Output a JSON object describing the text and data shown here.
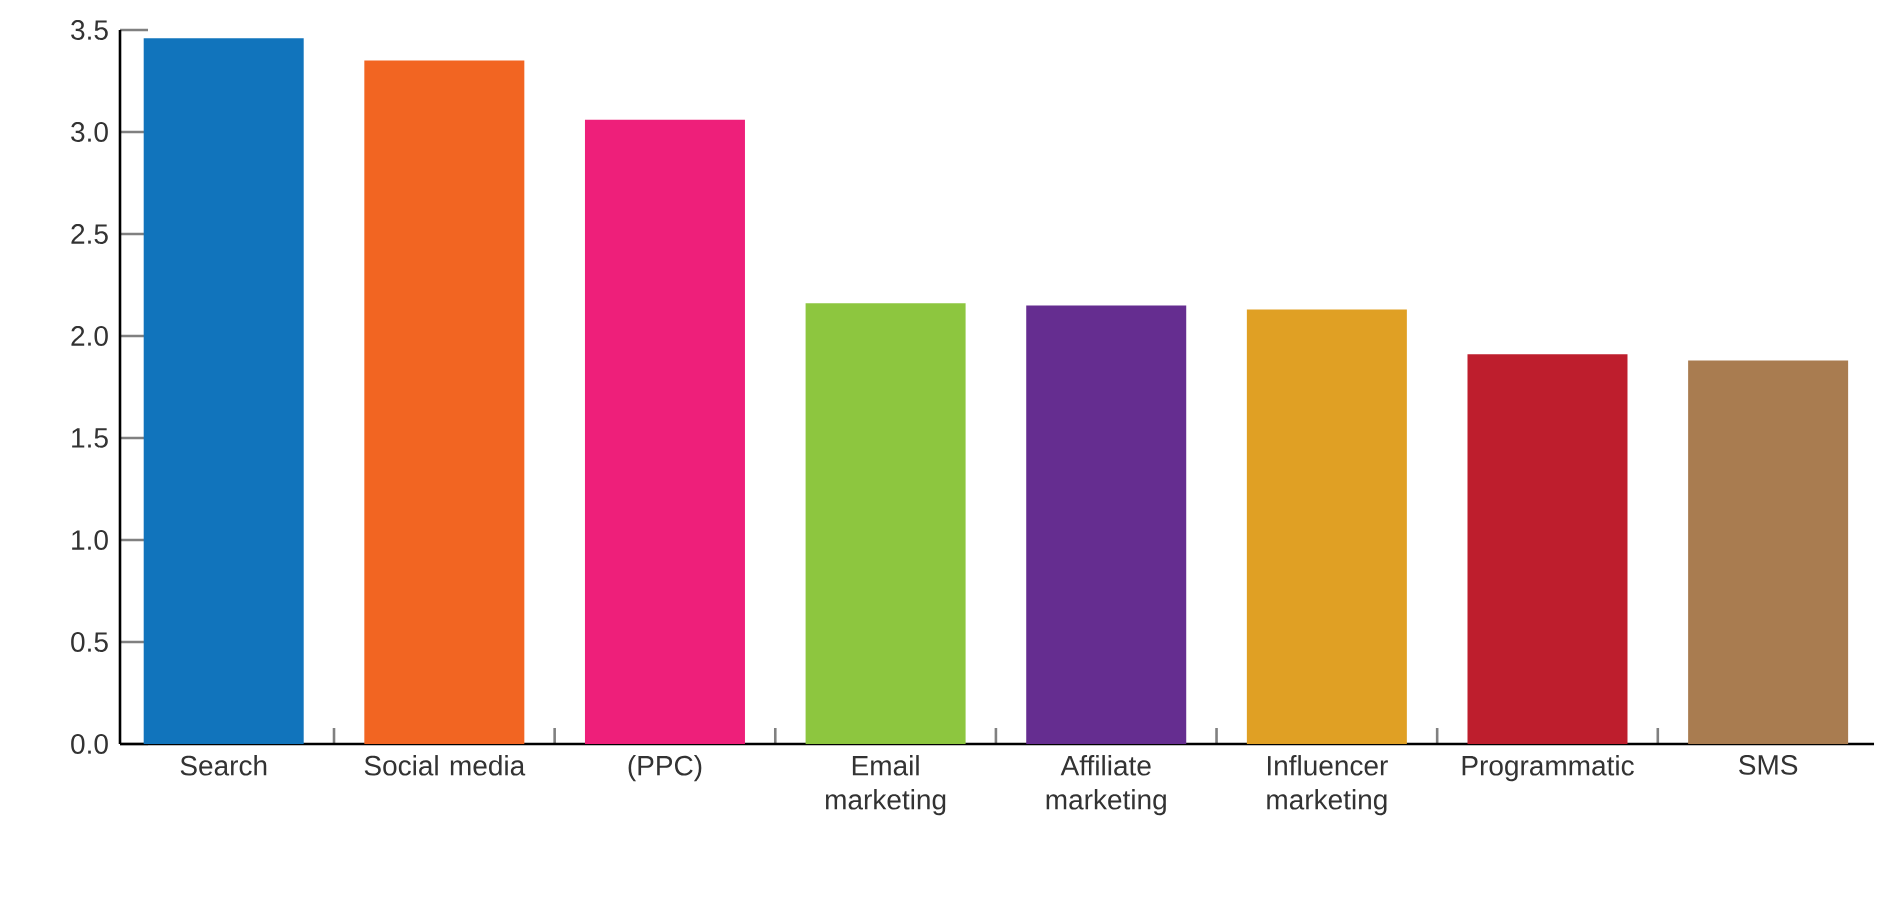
{
  "chart_data": {
    "type": "bar",
    "categories": [
      "Search",
      "Social media",
      "(PPC)",
      "Email marketing",
      "Affiliate marketing",
      "Influencer marketing",
      "Programmatic",
      "SMS"
    ],
    "values": [
      3.46,
      3.35,
      3.06,
      2.16,
      2.15,
      2.13,
      1.91,
      1.88
    ],
    "colors": [
      "#1174bc",
      "#f26522",
      "#ee1f7a",
      "#8dc63f",
      "#652d90",
      "#e0a024",
      "#be1e2d",
      "#a97c50"
    ],
    "ylim": [
      0,
      3.5
    ],
    "yticks": [
      {
        "value": 0,
        "label": "0.0"
      },
      {
        "value": 0.5,
        "label": "0.5"
      },
      {
        "value": 1,
        "label": "1.0"
      },
      {
        "value": 1.5,
        "label": "1.5"
      },
      {
        "value": 2,
        "label": "2.0"
      },
      {
        "value": 2.5,
        "label": "2.5"
      },
      {
        "value": 3,
        "label": "3.0"
      },
      {
        "value": 3.5,
        "label": "3.5"
      }
    ],
    "grid": false
  }
}
